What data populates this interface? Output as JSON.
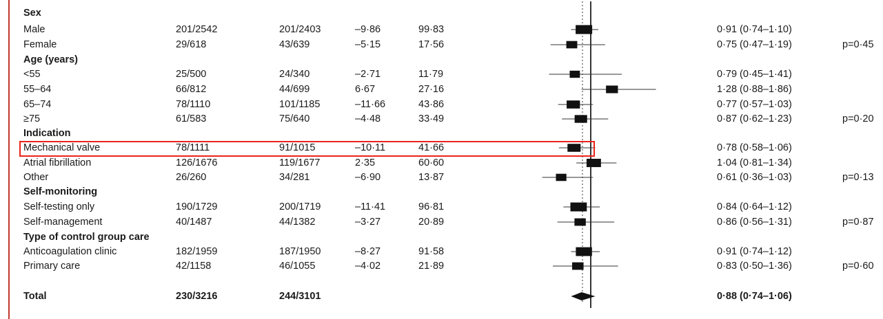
{
  "accent_color": "#e8231b",
  "highlight_row_index": 10,
  "rows": [
    {
      "label": "Sex",
      "heading": true
    },
    {
      "label": "Male",
      "g1": "201/2542",
      "g2": "201/2403",
      "oe": "–9·86",
      "var": "99·83",
      "or_text": "0·91 (0·74–1·10)",
      "p": ""
    },
    {
      "label": "Female",
      "g1": "29/618",
      "g2": "43/639",
      "oe": "–5·15",
      "var": "17·56",
      "or_text": "0·75 (0·47–1·19)",
      "p": "p=0·45"
    },
    {
      "label": "Age (years)",
      "heading": true
    },
    {
      "label": "<55",
      "g1": "25/500",
      "g2": "24/340",
      "oe": "–2·71",
      "var": "11·79",
      "or_text": "0·79 (0·45–1·41)",
      "p": ""
    },
    {
      "label": "55–64",
      "g1": "66/812",
      "g2": "44/699",
      "oe": "6·67",
      "var": "27·16",
      "or_text": "1·28 (0·88–1·86)",
      "p": ""
    },
    {
      "label": "65–74",
      "g1": "78/1110",
      "g2": "101/1185",
      "oe": "–11·66",
      "var": "43·86",
      "or_text": "0·77 (0·57–1·03)",
      "p": ""
    },
    {
      "label": "≥75",
      "g1": "61/583",
      "g2": "75/640",
      "oe": "–4·48",
      "var": "33·49",
      "or_text": "0·87 (0·62–1·23)",
      "p": "p=0·20"
    },
    {
      "label": "Indication",
      "heading": true
    },
    {
      "label": "Mechanical valve",
      "g1": "78/1111",
      "g2": "91/1015",
      "oe": "–10·11",
      "var": "41·66",
      "or_text": "0·78 (0·58–1·06)",
      "p": ""
    },
    {
      "label": "Atrial fibrillation",
      "g1": "126/1676",
      "g2": "119/1677",
      "oe": "2·35",
      "var": "60·60",
      "or_text": "1·04 (0·81–1·34)",
      "p": ""
    },
    {
      "label": "Other",
      "g1": "26/260",
      "g2": "34/281",
      "oe": "–6·90",
      "var": "13·87",
      "or_text": "0·61 (0·36–1·03)",
      "p": "p=0·13"
    },
    {
      "label": "Self-monitoring",
      "heading": true
    },
    {
      "label": "Self-testing only",
      "g1": "190/1729",
      "g2": "200/1719",
      "oe": "–11·41",
      "var": "96·81",
      "or_text": "0·84 (0·64–1·12)",
      "p": ""
    },
    {
      "label": "Self-management",
      "g1": "40/1487",
      "g2": "44/1382",
      "oe": "–3·27",
      "var": "20·89",
      "or_text": "0·86 (0·56–1·31)",
      "p": "p=0·87"
    },
    {
      "label": "Type of control group care",
      "heading": true
    },
    {
      "label": "Anticoagulation clinic",
      "g1": "182/1959",
      "g2": "187/1950",
      "oe": "–8·27",
      "var": "91·58",
      "or_text": "0·91 (0·74–1·12)",
      "p": ""
    },
    {
      "label": "Primary care",
      "g1": "42/1158",
      "g2": "46/1055",
      "oe": "–4·02",
      "var": "21·89",
      "or_text": "0·83 (0·50–1·36)",
      "p": "p=0·60"
    },
    {
      "label": "Total",
      "g1": "230/3216",
      "g2": "244/3101",
      "oe": "",
      "var": "",
      "or_text": "0·88 (0·74–1·06)",
      "p": "",
      "total": true
    }
  ],
  "chart_data": {
    "type": "forest",
    "reference_value": 1.0,
    "overall_estimate": 0.88,
    "points": [
      {
        "label": "Male",
        "estimate": 0.91,
        "lower": 0.74,
        "upper": 1.1,
        "weight": 99.83
      },
      {
        "label": "Female",
        "estimate": 0.75,
        "lower": 0.47,
        "upper": 1.19,
        "weight": 17.56
      },
      {
        "label": "<55",
        "estimate": 0.79,
        "lower": 0.45,
        "upper": 1.41,
        "weight": 11.79
      },
      {
        "label": "55–64",
        "estimate": 1.28,
        "lower": 0.88,
        "upper": 1.86,
        "weight": 27.16
      },
      {
        "label": "65–74",
        "estimate": 0.77,
        "lower": 0.57,
        "upper": 1.03,
        "weight": 43.86
      },
      {
        "label": "≥75",
        "estimate": 0.87,
        "lower": 0.62,
        "upper": 1.23,
        "weight": 33.49
      },
      {
        "label": "Mechanical valve",
        "estimate": 0.78,
        "lower": 0.58,
        "upper": 1.06,
        "weight": 41.66
      },
      {
        "label": "Atrial fibrillation",
        "estimate": 1.04,
        "lower": 0.81,
        "upper": 1.34,
        "weight": 60.6
      },
      {
        "label": "Other",
        "estimate": 0.61,
        "lower": 0.36,
        "upper": 1.03,
        "weight": 13.87
      },
      {
        "label": "Self-testing only",
        "estimate": 0.84,
        "lower": 0.64,
        "upper": 1.12,
        "weight": 96.81
      },
      {
        "label": "Self-management",
        "estimate": 0.86,
        "lower": 0.56,
        "upper": 1.31,
        "weight": 20.89
      },
      {
        "label": "Anticoagulation clinic",
        "estimate": 0.91,
        "lower": 0.74,
        "upper": 1.12,
        "weight": 91.58
      },
      {
        "label": "Primary care",
        "estimate": 0.83,
        "lower": 0.5,
        "upper": 1.36,
        "weight": 21.89
      },
      {
        "label": "Total",
        "estimate": 0.88,
        "lower": 0.74,
        "upper": 1.06,
        "diamond": true
      }
    ]
  }
}
